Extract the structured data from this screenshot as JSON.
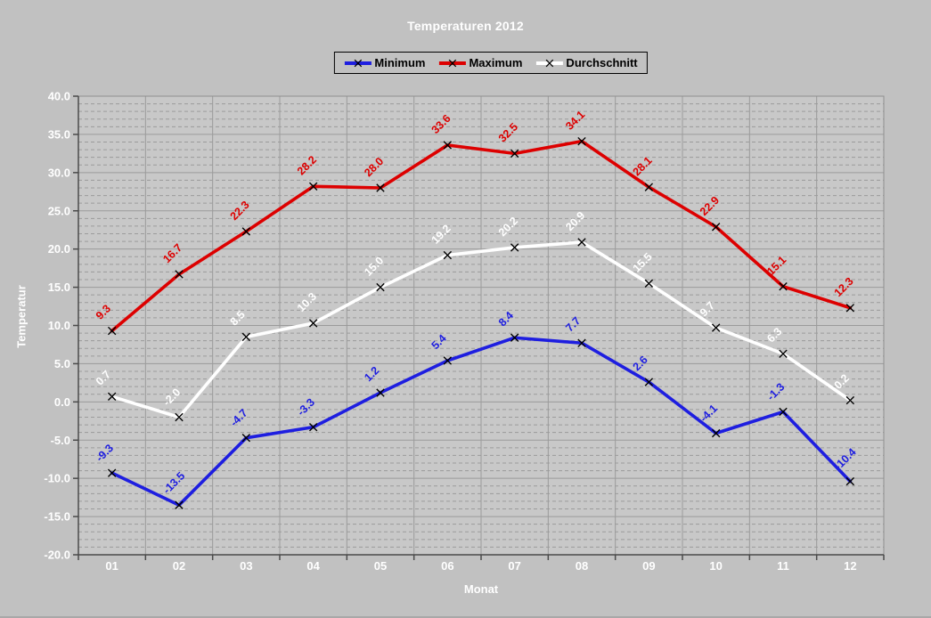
{
  "chart_data": {
    "type": "line",
    "title": "Temperaturen 2012",
    "xlabel": "Monat",
    "ylabel": "Temperatur",
    "categories": [
      "01",
      "02",
      "03",
      "04",
      "05",
      "06",
      "07",
      "08",
      "09",
      "10",
      "11",
      "12"
    ],
    "series": [
      {
        "name": "Minimum",
        "color": "#1e1ee0",
        "values": [
          -9.3,
          -13.5,
          -4.7,
          -3.3,
          1.2,
          5.4,
          8.4,
          7.7,
          2.6,
          -4.1,
          -1.3,
          -10.4
        ]
      },
      {
        "name": "Maximum",
        "color": "#dd0000",
        "values": [
          9.3,
          16.7,
          22.3,
          28.2,
          28.0,
          33.6,
          32.5,
          34.1,
          28.1,
          22.9,
          15.1,
          12.3
        ]
      },
      {
        "name": "Durchschnitt",
        "color": "#ffffff",
        "values": [
          0.7,
          -2.0,
          8.5,
          10.3,
          15.0,
          19.2,
          20.2,
          20.9,
          15.5,
          9.7,
          6.3,
          0.2
        ]
      }
    ],
    "ylim": [
      -20,
      40
    ],
    "y_major_step": 5,
    "y_minor_step": 1,
    "y_ticks": [
      "40.0",
      "35.0",
      "30.0",
      "25.0",
      "20.0",
      "15.0",
      "10.0",
      "5.0",
      "0.0",
      "-5.0",
      "-10.0",
      "-15.0",
      "-20.0"
    ],
    "grid": "major-solid, minor-dashed, vertical at month boundaries",
    "legend_position": "top",
    "marker": "x",
    "colors": {
      "page_bg": "#c1c1c1",
      "plot_bg": "#c8c8c8",
      "gridline": "#9b9b9b",
      "axis": "#4a4a4a",
      "border": "#8f8f8f",
      "tick_text": "#ffffff",
      "legend_text": "#000000",
      "marker": "#000000"
    }
  }
}
